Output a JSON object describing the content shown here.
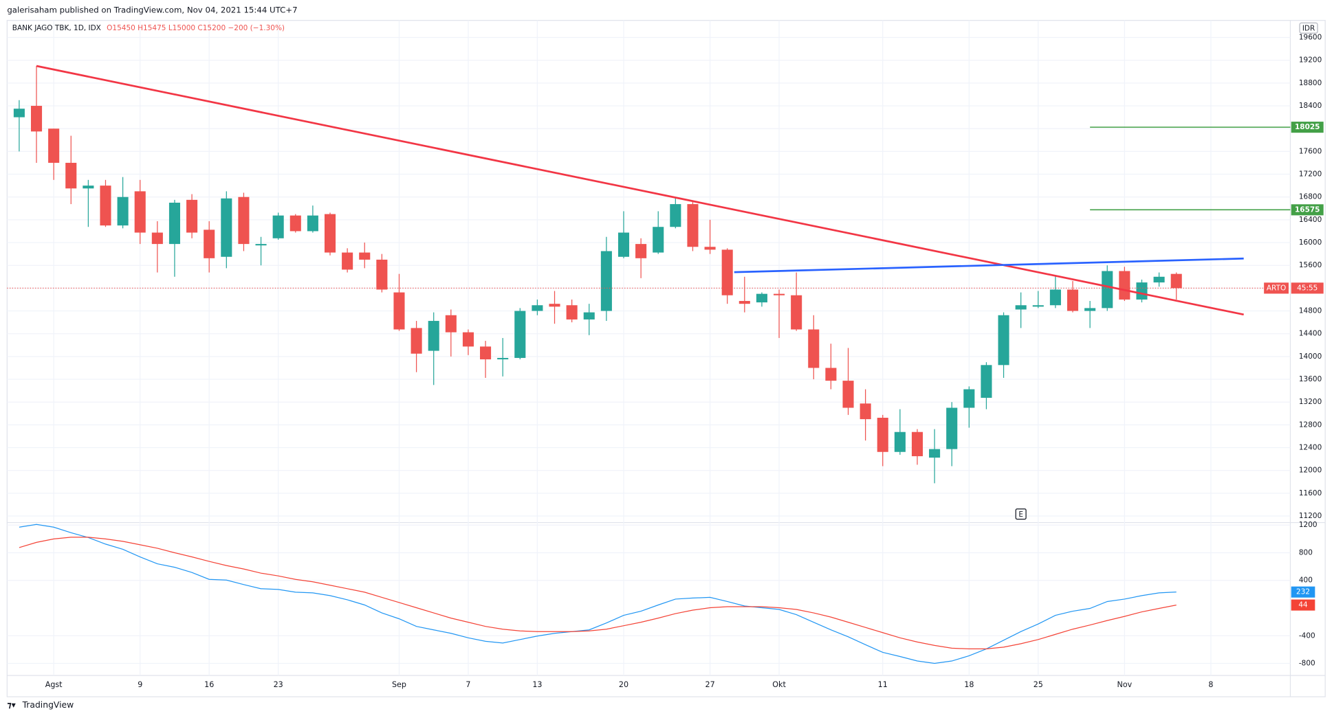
{
  "header": "galerisaham published on TradingView.com, Nov 04, 2021 15:44 UTC+7",
  "footer": "TradingView",
  "chart_data": {
    "type": "candlestick",
    "title": "BANK JAGO TBK, 1D, IDX",
    "legend_values": [
      "O15450",
      "H15475",
      "L15000",
      "C15200",
      "−200 (−1.30%)"
    ],
    "currency": "IDR",
    "symbol_tag": "ARTO",
    "countdown": "45:55",
    "xlim": [
      -0.7,
      73.6
    ],
    "xticks": [
      {
        "value": 2,
        "label": "Agst"
      },
      {
        "value": 7,
        "label": "9"
      },
      {
        "value": 11,
        "label": "16"
      },
      {
        "value": 15,
        "label": "23"
      },
      {
        "value": 22,
        "label": "Sep"
      },
      {
        "value": 26,
        "label": "7"
      },
      {
        "value": 30,
        "label": "13"
      },
      {
        "value": 35,
        "label": "20"
      },
      {
        "value": 40,
        "label": "27"
      },
      {
        "value": 44,
        "label": "Okt"
      },
      {
        "value": 50,
        "label": "11"
      },
      {
        "value": 55,
        "label": "18"
      },
      {
        "value": 59,
        "label": "25"
      },
      {
        "value": 64,
        "label": "Nov"
      },
      {
        "value": 69,
        "label": "8"
      }
    ],
    "open": [
      18200,
      18400,
      18000,
      17400,
      16950,
      17000,
      16300,
      16900,
      16175,
      15975,
      16750,
      16225,
      15750,
      16800,
      15950,
      16075,
      16475,
      16200,
      16500,
      15825,
      15825,
      15700,
      15125,
      14500,
      14100,
      14725,
      14425,
      14175,
      13950,
      13975,
      14800,
      14925,
      14900,
      14650,
      14800,
      15750,
      15975,
      15825,
      16275,
      16675,
      15925,
      15875,
      14975,
      14950,
      15100,
      15075,
      14475,
      13800,
      13575,
      13175,
      12925,
      12325,
      12675,
      12225,
      12375,
      13100,
      13275,
      13850,
      14825,
      14875,
      14900,
      15175,
      14800,
      14850,
      15500,
      15000,
      15300,
      15450
    ],
    "high": [
      18500,
      19100,
      18000,
      17875,
      17100,
      17100,
      17150,
      17100,
      16375,
      16750,
      16850,
      16375,
      16900,
      16875,
      16100,
      16525,
      16500,
      16650,
      16525,
      15900,
      16000,
      15800,
      15450,
      14625,
      14775,
      14825,
      14475,
      14275,
      14325,
      14850,
      15000,
      15150,
      15000,
      14925,
      16100,
      16550,
      16075,
      16550,
      16800,
      16725,
      16400,
      15900,
      15400,
      15125,
      15175,
      15475,
      14725,
      14225,
      14150,
      13425,
      12975,
      13075,
      12725,
      12725,
      13200,
      13475,
      13900,
      14775,
      15125,
      15150,
      15425,
      15325,
      14975,
      15600,
      15575,
      15350,
      15475,
      15475
    ],
    "low": [
      17600,
      17400,
      17100,
      16675,
      16275,
      16275,
      16250,
      15975,
      15475,
      15400,
      16075,
      15475,
      15550,
      15850,
      15600,
      16050,
      16175,
      16175,
      15775,
      15475,
      15550,
      15125,
      14450,
      13725,
      13500,
      14000,
      14025,
      13625,
      13650,
      13950,
      14725,
      14575,
      14600,
      14375,
      14625,
      15725,
      15375,
      15800,
      16250,
      15850,
      15800,
      14925,
      14775,
      14875,
      14325,
      14450,
      13600,
      13425,
      12975,
      12525,
      12075,
      12275,
      12100,
      11775,
      12075,
      12750,
      13075,
      13625,
      14500,
      14850,
      14850,
      14775,
      14500,
      14800,
      14975,
      14950,
      15225,
      15000
    ],
    "close": [
      18350,
      17950,
      17400,
      16950,
      17000,
      16300,
      16800,
      16175,
      15975,
      16700,
      16175,
      15725,
      16775,
      15975,
      15975,
      16475,
      16200,
      16475,
      15825,
      15525,
      15700,
      15175,
      14475,
      14050,
      14625,
      14425,
      14175,
      13950,
      13975,
      14800,
      14900,
      14875,
      14650,
      14775,
      15850,
      16175,
      15725,
      16275,
      16675,
      15925,
      15875,
      15075,
      14925,
      15100,
      15075,
      14475,
      13800,
      13575,
      13100,
      12900,
      12325,
      12675,
      12250,
      12375,
      13100,
      13425,
      13850,
      14725,
      14900,
      14900,
      15175,
      14800,
      14850,
      15500,
      15000,
      15300,
      15400,
      15200
    ],
    "up_color": "#26a69a",
    "down_color": "#ef5350",
    "ylim": [
      11100,
      19870
    ],
    "yticks": [
      11200,
      11600,
      12000,
      12400,
      12800,
      13200,
      13600,
      14000,
      14400,
      14800,
      15200,
      15600,
      16000,
      16400,
      16800,
      17200,
      17600,
      18000,
      18400,
      18800,
      19200,
      19600
    ],
    "grid": true,
    "levels": [
      {
        "value": 18025,
        "color": "#43a047",
        "start": 62
      },
      {
        "value": 16575,
        "color": "#43a047",
        "start": 62
      }
    ],
    "trend_lines": [
      {
        "color": "#f23645",
        "x": [
          1,
          70.9
        ],
        "y": [
          19100,
          14736
        ]
      },
      {
        "color": "#2962ff",
        "x": [
          41.4,
          70.9
        ],
        "y": [
          15480,
          15720
        ]
      }
    ],
    "events": [
      {
        "label": "E",
        "x": 58
      }
    ],
    "indicator": {
      "type": "line",
      "ylim": [
        -975,
        1224
      ],
      "yticks": [
        1200,
        800,
        400,
        -400,
        -800
      ],
      "series": [
        {
          "color": "#2196f3",
          "values": [
            1170,
            1210,
            1170,
            1090,
            1020,
            925,
            850,
            740,
            640,
            590,
            515,
            415,
            405,
            340,
            280,
            270,
            230,
            220,
            180,
            120,
            45,
            -70,
            -155,
            -265,
            -315,
            -365,
            -430,
            -480,
            -505,
            -455,
            -405,
            -365,
            -340,
            -315,
            -215,
            -105,
            -45,
            45,
            130,
            145,
            155,
            95,
            30,
            5,
            -20,
            -95,
            -205,
            -315,
            -415,
            -530,
            -640,
            -700,
            -765,
            -800,
            -765,
            -690,
            -590,
            -465,
            -340,
            -230,
            -105,
            -45,
            -5,
            95,
            130,
            180,
            220,
            232
          ]
        },
        {
          "color": "#f44336",
          "values": [
            875,
            950,
            1000,
            1025,
            1025,
            1000,
            965,
            915,
            865,
            800,
            740,
            675,
            615,
            565,
            505,
            465,
            415,
            380,
            330,
            280,
            230,
            155,
            80,
            5,
            -70,
            -145,
            -205,
            -265,
            -305,
            -330,
            -340,
            -340,
            -340,
            -330,
            -305,
            -255,
            -205,
            -145,
            -80,
            -30,
            5,
            20,
            20,
            20,
            5,
            -20,
            -70,
            -130,
            -205,
            -280,
            -355,
            -430,
            -490,
            -540,
            -580,
            -590,
            -590,
            -565,
            -515,
            -455,
            -380,
            -305,
            -245,
            -180,
            -120,
            -55,
            -5,
            44
          ]
        }
      ]
    }
  }
}
